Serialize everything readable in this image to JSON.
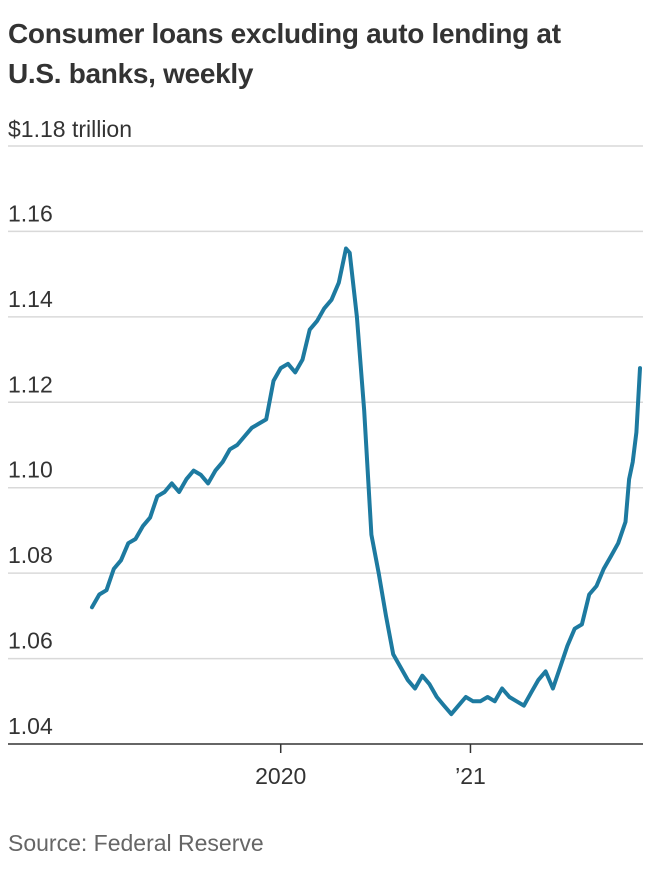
{
  "title": "Consumer loans excluding auto lending at U.S. banks, weekly",
  "unit_label": "$1.18 trillion",
  "source": "Source: Federal Reserve",
  "colors": {
    "line": "#1d7aa0",
    "grid": "#d9d9d9",
    "axis": "#333333"
  },
  "chart_data": {
    "type": "line",
    "title": "Consumer loans excluding auto lending at U.S. banks, weekly",
    "xlabel": "",
    "ylabel": "$1.18 trillion",
    "ylim": [
      1.04,
      1.18
    ],
    "yticks": [
      1.04,
      1.06,
      1.08,
      1.1,
      1.12,
      1.14,
      1.16
    ],
    "ytick_labels": [
      "1.04",
      "1.06",
      "1.08",
      "1.10",
      "1.12",
      "1.14",
      "1.16"
    ],
    "xlim": [
      "2019-01-02",
      "2021-11-24"
    ],
    "xticks": [
      "2020-01-01",
      "2021-01-01"
    ],
    "xtick_labels": [
      "2020",
      "’21"
    ],
    "grid": true,
    "series": [
      {
        "values": [
          [
            "2019-01-02",
            1.072
          ],
          [
            "2019-01-16",
            1.075
          ],
          [
            "2019-01-30",
            1.076
          ],
          [
            "2019-02-13",
            1.081
          ],
          [
            "2019-02-27",
            1.083
          ],
          [
            "2019-03-13",
            1.087
          ],
          [
            "2019-03-27",
            1.088
          ],
          [
            "2019-04-10",
            1.091
          ],
          [
            "2019-04-24",
            1.093
          ],
          [
            "2019-05-08",
            1.098
          ],
          [
            "2019-05-22",
            1.099
          ],
          [
            "2019-06-05",
            1.101
          ],
          [
            "2019-06-19",
            1.099
          ],
          [
            "2019-07-03",
            1.102
          ],
          [
            "2019-07-17",
            1.104
          ],
          [
            "2019-07-31",
            1.103
          ],
          [
            "2019-08-14",
            1.101
          ],
          [
            "2019-08-28",
            1.104
          ],
          [
            "2019-09-11",
            1.106
          ],
          [
            "2019-09-25",
            1.109
          ],
          [
            "2019-10-09",
            1.11
          ],
          [
            "2019-10-23",
            1.112
          ],
          [
            "2019-11-06",
            1.114
          ],
          [
            "2019-11-20",
            1.115
          ],
          [
            "2019-12-04",
            1.116
          ],
          [
            "2019-12-18",
            1.125
          ],
          [
            "2020-01-01",
            1.128
          ],
          [
            "2020-01-15",
            1.129
          ],
          [
            "2020-01-29",
            1.127
          ],
          [
            "2020-02-12",
            1.13
          ],
          [
            "2020-02-26",
            1.137
          ],
          [
            "2020-03-11",
            1.139
          ],
          [
            "2020-03-25",
            1.142
          ],
          [
            "2020-04-08",
            1.144
          ],
          [
            "2020-04-22",
            1.148
          ],
          [
            "2020-05-06",
            1.156
          ],
          [
            "2020-05-13",
            1.155
          ],
          [
            "2020-05-27",
            1.14
          ],
          [
            "2020-06-10",
            1.118
          ],
          [
            "2020-06-24",
            1.089
          ],
          [
            "2020-07-08",
            1.08
          ],
          [
            "2020-07-22",
            1.07
          ],
          [
            "2020-08-05",
            1.061
          ],
          [
            "2020-08-19",
            1.058
          ],
          [
            "2020-09-02",
            1.055
          ],
          [
            "2020-09-16",
            1.053
          ],
          [
            "2020-09-30",
            1.056
          ],
          [
            "2020-10-14",
            1.054
          ],
          [
            "2020-10-28",
            1.051
          ],
          [
            "2020-11-11",
            1.049
          ],
          [
            "2020-11-25",
            1.047
          ],
          [
            "2020-12-09",
            1.049
          ],
          [
            "2020-12-23",
            1.051
          ],
          [
            "2021-01-06",
            1.05
          ],
          [
            "2021-01-20",
            1.05
          ],
          [
            "2021-02-03",
            1.051
          ],
          [
            "2021-02-17",
            1.05
          ],
          [
            "2021-03-03",
            1.053
          ],
          [
            "2021-03-17",
            1.051
          ],
          [
            "2021-03-31",
            1.05
          ],
          [
            "2021-04-14",
            1.049
          ],
          [
            "2021-04-28",
            1.052
          ],
          [
            "2021-05-12",
            1.055
          ],
          [
            "2021-05-26",
            1.057
          ],
          [
            "2021-06-09",
            1.053
          ],
          [
            "2021-06-23",
            1.058
          ],
          [
            "2021-07-07",
            1.063
          ],
          [
            "2021-07-21",
            1.067
          ],
          [
            "2021-08-04",
            1.068
          ],
          [
            "2021-08-18",
            1.075
          ],
          [
            "2021-09-01",
            1.077
          ],
          [
            "2021-09-15",
            1.081
          ],
          [
            "2021-09-29",
            1.084
          ],
          [
            "2021-10-13",
            1.087
          ],
          [
            "2021-10-27",
            1.092
          ],
          [
            "2021-11-03",
            1.102
          ],
          [
            "2021-11-10",
            1.106
          ],
          [
            "2021-11-17",
            1.113
          ],
          [
            "2021-11-24",
            1.128
          ]
        ]
      }
    ]
  }
}
